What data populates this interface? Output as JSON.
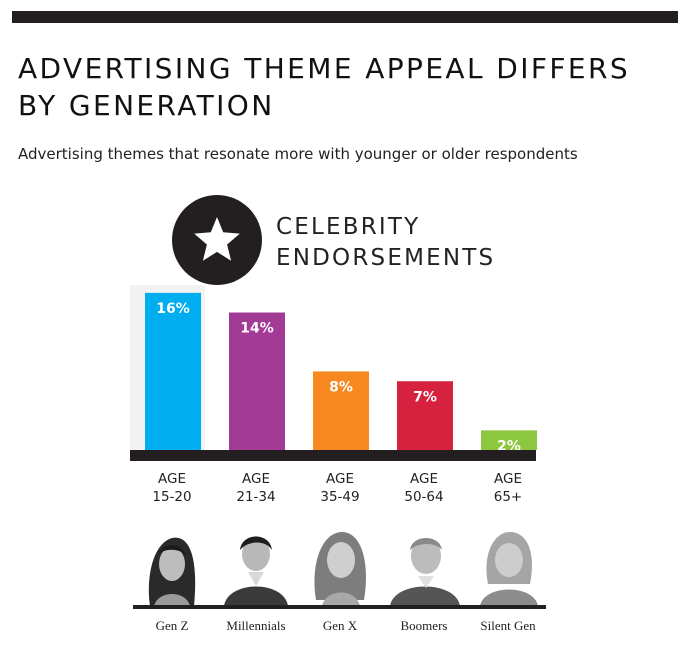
{
  "header": {
    "title": "ADVERTISING THEME APPEAL DIFFERS BY GENERATION",
    "subtitle": "Advertising themes that resonate more with younger or older respondents"
  },
  "section": {
    "icon": "star-icon",
    "title_line1": "CELEBRITY",
    "title_line2": "ENDORSEMENTS"
  },
  "chart_data": {
    "type": "bar",
    "title": "CELEBRITY ENDORSEMENTS",
    "categories": [
      "AGE 15-20",
      "AGE 21-34",
      "AGE 35-49",
      "AGE 50-64",
      "AGE 65+"
    ],
    "values": [
      16,
      14,
      8,
      7,
      2
    ],
    "value_labels": [
      "16%",
      "14%",
      "8%",
      "7%",
      "2%"
    ],
    "unit": "%",
    "ylim": [
      0,
      16
    ],
    "grid": false,
    "colors": [
      "#00aeef",
      "#a23a96",
      "#f7881f",
      "#d6213f",
      "#8dc63f"
    ],
    "generations": [
      "Gen Z",
      "Millennials",
      "Gen X",
      "Boomers",
      "Silent Gen"
    ]
  },
  "age_labels": [
    {
      "top": "AGE",
      "range": "15-20"
    },
    {
      "top": "AGE",
      "range": "21-34"
    },
    {
      "top": "AGE",
      "range": "35-49"
    },
    {
      "top": "AGE",
      "range": "50-64"
    },
    {
      "top": "AGE",
      "range": "65+"
    }
  ],
  "colors": {
    "dark": "#231f20",
    "bar_bg": "#f2f2f2"
  }
}
